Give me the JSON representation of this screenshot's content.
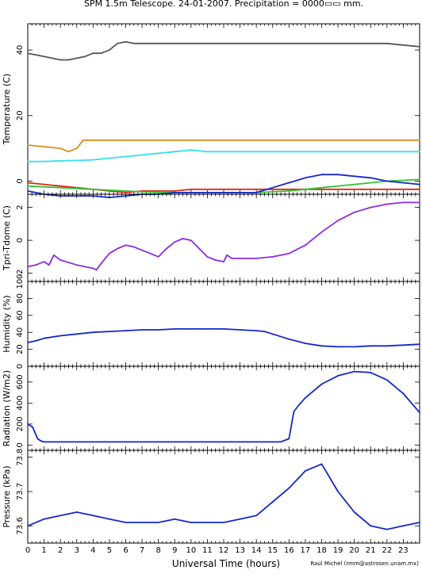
{
  "chart_data": {
    "type": "line",
    "title": "SPM 1.5m Telescope. 24-01-2007. Precipitation = 0000▭▭ mm.",
    "xlabel": "Universal Time (hours)",
    "credit": "Raul Michel (rmm@astrosen.unam.mx)",
    "xlim": [
      0,
      24
    ],
    "xticks": [
      "0",
      "1",
      "2",
      "3",
      "4",
      "5",
      "6",
      "7",
      "8",
      "9",
      "10",
      "11",
      "12",
      "13",
      "14",
      "15",
      "16",
      "17",
      "18",
      "19",
      "20",
      "21",
      "22",
      "23"
    ],
    "panels": [
      {
        "ylabel": "Temperature (C)",
        "ylim": [
          -4,
          48
        ],
        "yticks": [
          0,
          20,
          40
        ],
        "series": [
          {
            "color": "#555555",
            "x": [
              0,
              0.5,
              1,
              1.5,
              2,
              2.5,
              3,
              3.5,
              4,
              4.5,
              5,
              5.5,
              6,
              6.5,
              7,
              7.5,
              8,
              10,
              12,
              14,
              16,
              18,
              20,
              22,
              24
            ],
            "y": [
              39,
              38.5,
              38,
              37.5,
              37,
              37,
              37.5,
              38,
              39,
              39,
              40,
              42,
              42.5,
              42,
              42,
              42,
              42,
              42,
              42,
              42,
              42,
              42,
              42,
              42,
              41
            ]
          },
          {
            "color": "#e08a1e",
            "x": [
              0,
              1,
              2,
              2.5,
              3,
              3.4,
              4,
              6,
              10,
              14,
              18,
              22,
              24
            ],
            "y": [
              11,
              10.5,
              10,
              9,
              10,
              12.5,
              12.5,
              12.5,
              12.5,
              12.5,
              12.5,
              12.5,
              12.5
            ]
          },
          {
            "color": "#36e0e8",
            "x": [
              0,
              1,
              2,
              3,
              4,
              5,
              6,
              7,
              8,
              9,
              10,
              11,
              12,
              13,
              14,
              16,
              18,
              20,
              22,
              24
            ],
            "y": [
              6,
              6,
              6.2,
              6.3,
              6.5,
              7,
              7.5,
              8,
              8.5,
              9,
              9.5,
              9,
              9,
              9,
              9,
              9,
              9,
              9,
              9,
              9
            ]
          },
          {
            "color": "#d62a1a",
            "x": [
              0,
              1,
              2,
              3,
              4,
              5,
              6,
              7,
              8,
              9,
              10,
              12,
              14,
              16,
              18,
              20,
              22,
              24
            ],
            "y": [
              -0.5,
              -1,
              -1.5,
              -2,
              -2.5,
              -3,
              -3.5,
              -3,
              -3,
              -3,
              -2.5,
              -2.5,
              -2.5,
              -2.5,
              -2.5,
              -2.5,
              -2.5,
              -2.5
            ]
          },
          {
            "color": "#34c234",
            "x": [
              0,
              2,
              4,
              6,
              8,
              10,
              12,
              14,
              16,
              18,
              20,
              22,
              24
            ],
            "y": [
              -1.5,
              -2,
              -2.5,
              -3,
              -3.5,
              -3.5,
              -3.5,
              -3.5,
              -3,
              -2,
              -1,
              0,
              0.5
            ]
          },
          {
            "color": "#1428c8",
            "x": [
              0,
              1,
              2,
              3,
              4,
              5,
              6,
              7,
              8,
              9,
              10,
              11,
              12,
              13,
              14,
              15,
              16,
              17,
              18,
              19,
              20,
              21,
              22,
              23,
              24
            ],
            "y": [
              -3,
              -4,
              -4.5,
              -4.5,
              -4.5,
              -5,
              -4.5,
              -4,
              -4,
              -3.5,
              -3.5,
              -3.5,
              -3.5,
              -3.5,
              -3.5,
              -2,
              -0.5,
              1,
              2,
              2,
              1.5,
              1,
              0,
              -0.5,
              -1
            ]
          }
        ]
      },
      {
        "ylabel": "Tpri-Tdome (C)",
        "ylim": [
          -2.5,
          2.8
        ],
        "yticks": [
          -2,
          0,
          2
        ],
        "series": [
          {
            "color": "#8a2be2",
            "x": [
              0,
              0.5,
              1,
              1.3,
              1.6,
              2,
              3,
              4,
              4.2,
              4.5,
              5,
              5.5,
              6,
              6.5,
              7,
              7.5,
              8,
              8.5,
              9,
              9.5,
              10,
              10.5,
              11,
              11.5,
              12,
              12.2,
              12.5,
              13,
              14,
              15,
              16,
              17,
              18,
              19,
              20,
              21,
              22,
              23,
              24
            ],
            "y": [
              -1.6,
              -1.5,
              -1.3,
              -1.5,
              -0.9,
              -1.2,
              -1.5,
              -1.7,
              -1.8,
              -1.4,
              -0.8,
              -0.5,
              -0.3,
              -0.4,
              -0.6,
              -0.8,
              -1.0,
              -0.5,
              -0.1,
              0.1,
              0,
              -0.5,
              -1,
              -1.2,
              -1.3,
              -0.9,
              -1.1,
              -1.1,
              -1.1,
              -1.0,
              -0.8,
              -0.3,
              0.5,
              1.2,
              1.7,
              2.0,
              2.2,
              2.3,
              2.3
            ]
          }
        ]
      },
      {
        "ylabel": "Humidity (%)",
        "ylim": [
          0,
          100
        ],
        "yticks": [
          0,
          20,
          40,
          60,
          80,
          100
        ],
        "series": [
          {
            "color": "#1428c8",
            "x": [
              0,
              0.5,
              1,
              2,
              3,
              4,
              5,
              6,
              7,
              8,
              9,
              10,
              11,
              12,
              13,
              14,
              14.5,
              15,
              16,
              17,
              18,
              19,
              20,
              21,
              22,
              23,
              24
            ],
            "y": [
              28,
              30,
              33,
              36,
              38,
              40,
              41,
              42,
              43,
              43,
              44,
              44,
              44,
              44,
              43,
              42,
              41,
              38,
              32,
              27,
              24,
              23,
              23,
              24,
              24,
              25,
              26
            ]
          }
        ]
      },
      {
        "ylabel": "Radiation (W/m2)",
        "ylim": [
          -50,
          750
        ],
        "yticks": [
          0,
          200,
          400,
          600
        ],
        "series": [
          {
            "color": "#1428c8",
            "x": [
              0,
              0.3,
              0.6,
              0.8,
              1,
              2,
              4,
              6,
              8,
              10,
              12,
              14,
              15,
              15.5,
              16,
              16.3,
              16.6,
              17,
              18,
              19,
              20,
              21,
              22,
              23,
              24
            ],
            "y": [
              200,
              170,
              60,
              40,
              30,
              30,
              30,
              30,
              30,
              30,
              30,
              30,
              30,
              30,
              60,
              320,
              380,
              450,
              580,
              660,
              700,
              690,
              620,
              490,
              310
            ]
          }
        ]
      },
      {
        "ylabel": "Pressure (kPa)",
        "ylim": [
          73.55,
          73.82
        ],
        "yticks": [
          73.6,
          73.7,
          73.8
        ],
        "series": [
          {
            "color": "#1428c8",
            "x": [
              0,
              1,
              2,
              3,
              4,
              5,
              6,
              7,
              8,
              9,
              10,
              11,
              12,
              13,
              14,
              15,
              16,
              17,
              18,
              19,
              20,
              21,
              22,
              23,
              24
            ],
            "y": [
              73.6,
              73.62,
              73.63,
              73.64,
              73.63,
              73.62,
              73.61,
              73.61,
              73.61,
              73.62,
              73.61,
              73.61,
              73.61,
              73.62,
              73.63,
              73.67,
              73.71,
              73.76,
              73.78,
              73.7,
              73.64,
              73.6,
              73.59,
              73.6,
              73.61
            ]
          }
        ]
      }
    ]
  }
}
